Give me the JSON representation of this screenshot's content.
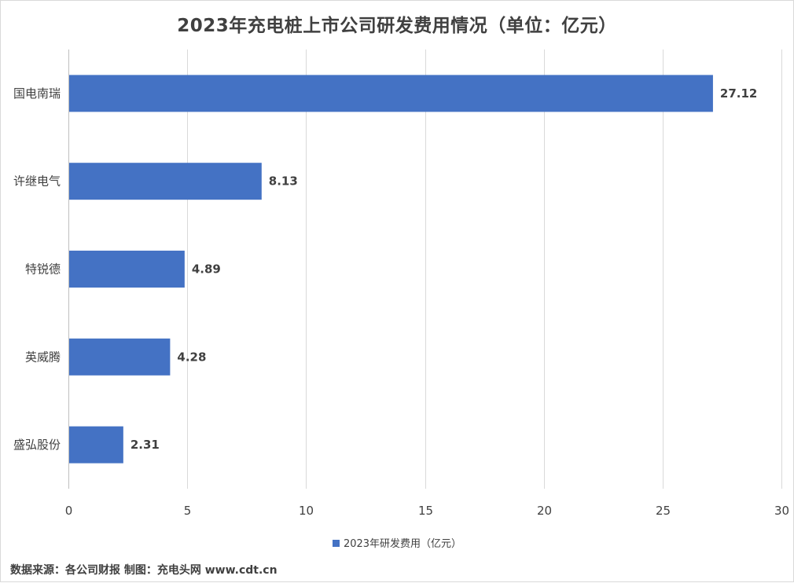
{
  "chart_data": {
    "type": "bar",
    "orientation": "horizontal",
    "title": "2023年充电桩上市公司研发费用情况（单位：亿元）",
    "categories": [
      "国电南瑞",
      "许继电气",
      "特锐德",
      "英威腾",
      "盛弘股份"
    ],
    "series": [
      {
        "name": "2023年研发费用（亿元）",
        "values": [
          27.12,
          8.13,
          4.89,
          4.28,
          2.31
        ],
        "labels": [
          "27.12",
          "8.13",
          "4.89",
          "4.28",
          "2.31"
        ]
      }
    ],
    "xlim": [
      0,
      30
    ],
    "xticks": [
      0,
      5,
      10,
      15,
      20,
      25,
      30
    ],
    "grid": true,
    "legend_position": "bottom",
    "bar_color": "#4472c4"
  },
  "footer": {
    "source": "数据来源：各公司财报  制图：充电头网 www.cdt.cn"
  }
}
